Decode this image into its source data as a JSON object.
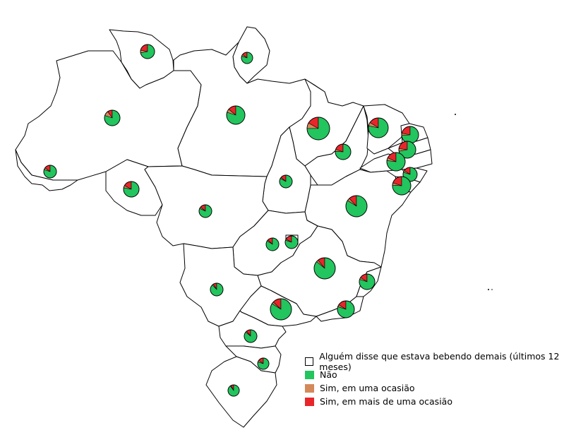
{
  "legend": {
    "title": "Alguém disse que estava bebendo demais (últimos 12 meses)",
    "items": [
      {
        "label": "Não",
        "color": "#22c55e"
      },
      {
        "label": "Sim, em uma ocasião",
        "color": "#d4895a"
      },
      {
        "label": "Sim, em mais de uma ocasião",
        "color": "#e8262a"
      }
    ]
  },
  "states": [
    {
      "uf": "RR",
      "nao": 0.72,
      "uma": 0.06,
      "mais": 0.22
    },
    {
      "uf": "AP",
      "nao": 0.8,
      "uma": 0.05,
      "mais": 0.15
    },
    {
      "uf": "AM",
      "nao": 0.8,
      "uma": 0.1,
      "mais": 0.1
    },
    {
      "uf": "PA",
      "nao": 0.8,
      "uma": 0.06,
      "mais": 0.14
    },
    {
      "uf": "MA",
      "nao": 0.75,
      "uma": 0.08,
      "mais": 0.17
    },
    {
      "uf": "CE",
      "nao": 0.78,
      "uma": 0.06,
      "mais": 0.16
    },
    {
      "uf": "RN",
      "nao": 0.74,
      "uma": 0.04,
      "mais": 0.22
    },
    {
      "uf": "PB",
      "nao": 0.72,
      "uma": 0.05,
      "mais": 0.23
    },
    {
      "uf": "PI",
      "nao": 0.76,
      "uma": 0.04,
      "mais": 0.2
    },
    {
      "uf": "PE",
      "nao": 0.77,
      "uma": 0.05,
      "mais": 0.18
    },
    {
      "uf": "AL",
      "nao": 0.8,
      "uma": 0.04,
      "mais": 0.16
    },
    {
      "uf": "SE",
      "nao": 0.76,
      "uma": 0.04,
      "mais": 0.2
    },
    {
      "uf": "AC",
      "nao": 0.8,
      "uma": 0.05,
      "mais": 0.15
    },
    {
      "uf": "RO",
      "nao": 0.78,
      "uma": 0.05,
      "mais": 0.17
    },
    {
      "uf": "TO",
      "nao": 0.83,
      "uma": 0.03,
      "mais": 0.14
    },
    {
      "uf": "BA",
      "nao": 0.84,
      "uma": 0.04,
      "mais": 0.12
    },
    {
      "uf": "MT",
      "nao": 0.82,
      "uma": 0.04,
      "mais": 0.14
    },
    {
      "uf": "GO",
      "nao": 0.84,
      "uma": 0.03,
      "mais": 0.13
    },
    {
      "uf": "DF",
      "nao": 0.8,
      "uma": 0.03,
      "mais": 0.17
    },
    {
      "uf": "MG",
      "nao": 0.86,
      "uma": 0.03,
      "mais": 0.11
    },
    {
      "uf": "MS",
      "nao": 0.88,
      "uma": 0.03,
      "mais": 0.09
    },
    {
      "uf": "ES",
      "nao": 0.8,
      "uma": 0.04,
      "mais": 0.16
    },
    {
      "uf": "SP",
      "nao": 0.84,
      "uma": 0.03,
      "mais": 0.13
    },
    {
      "uf": "RJ",
      "nao": 0.8,
      "uma": 0.04,
      "mais": 0.16
    },
    {
      "uf": "PR",
      "nao": 0.86,
      "uma": 0.03,
      "mais": 0.11
    },
    {
      "uf": "SC",
      "nao": 0.8,
      "uma": 0.05,
      "mais": 0.15
    },
    {
      "uf": "RS",
      "nao": 0.9,
      "uma": 0.02,
      "mais": 0.08
    }
  ]
}
